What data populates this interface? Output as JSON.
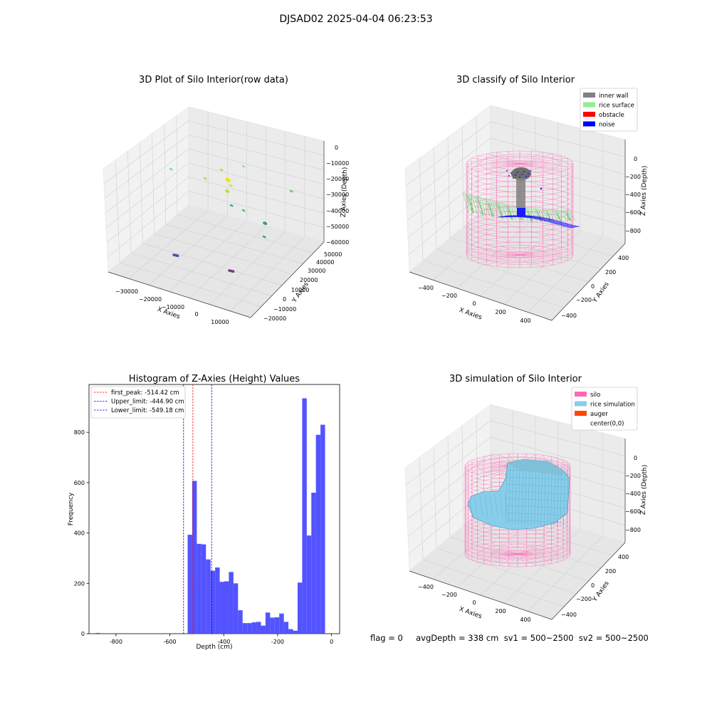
{
  "figure": {
    "suptitle": "DJSAD02 2025-04-04 06:23:53",
    "status": "flag = 0     avgDepth = 338 cm  sv1 = 500~2500  sv2 = 500~2500"
  },
  "panels": {
    "raw": {
      "title": "3D Plot of Silo Interior(row data)",
      "xlabel": "X Axies",
      "ylabel": "Y Axies",
      "zlabel": "Z Axies (Depth)",
      "xticks": [
        "−30000",
        "−20000",
        "−10000",
        "0",
        "10000"
      ],
      "yticks": [
        "−20000",
        "−10000",
        "0",
        "10000",
        "20000",
        "30000",
        "40000",
        "50000"
      ],
      "zticks": [
        "0",
        "−10000",
        "−20000",
        "−30000",
        "−40000",
        "−50000",
        "−60000"
      ]
    },
    "classify": {
      "title": "3D classify of Silo Interior",
      "xlabel": "X Axies",
      "ylabel": "Y Axies",
      "zlabel": "Z Axies (Depth)",
      "xticks": [
        "−400",
        "−200",
        "0",
        "200",
        "400"
      ],
      "yticks": [
        "−400",
        "−200",
        "0",
        "200",
        "400"
      ],
      "zticks": [
        "0",
        "−200",
        "−400",
        "−600",
        "−800"
      ],
      "legend": [
        {
          "label": "inner wall",
          "color": "#808080"
        },
        {
          "label": "rice surface",
          "color": "#90ee90"
        },
        {
          "label": "obstacle",
          "color": "#ff0000"
        },
        {
          "label": "noise",
          "color": "#0000ff"
        }
      ]
    },
    "simulation": {
      "title": "3D simulation of Silo Interior",
      "xlabel": "X Axies",
      "ylabel": "Y Axies",
      "zlabel": "Z Axies (Depth)",
      "xticks": [
        "−400",
        "−200",
        "0",
        "200",
        "400"
      ],
      "yticks": [
        "−400",
        "−200",
        "0",
        "200",
        "400"
      ],
      "zticks": [
        "0",
        "−200",
        "−400",
        "−600",
        "−800"
      ],
      "legend": [
        {
          "label": "silo",
          "color": "#ff69b4"
        },
        {
          "label": "rice simulation",
          "color": "#87ceeb"
        },
        {
          "label": "auger",
          "color": "#ff4500"
        },
        {
          "label": "center(0,0)",
          "color": "#ffffff"
        }
      ]
    }
  },
  "colors": {
    "hist_bar": "#4d4dff",
    "first_peak": "#ff0000",
    "limits": "#0000cc",
    "silo_mesh": "#ff69b4",
    "rice": "#87ceeb",
    "pane": "#f2f2f2",
    "grid": "#d0d0d0"
  },
  "chart_data": {
    "type": "bar",
    "title": "Histogram of Z-Axies (Height) Values",
    "xlabel": "Depth (cm)",
    "ylabel": "Frequency",
    "xlim": [
      -900,
      30
    ],
    "ylim": [
      0,
      990
    ],
    "xticks": [
      -800,
      -600,
      -400,
      -200,
      0
    ],
    "yticks": [
      0,
      200,
      400,
      600,
      800
    ],
    "bin_width": 17,
    "bins": [
      {
        "x0": -875,
        "value": 3
      },
      {
        "x0": -534,
        "value": 393
      },
      {
        "x0": -517,
        "value": 607
      },
      {
        "x0": -500,
        "value": 357
      },
      {
        "x0": -483,
        "value": 355
      },
      {
        "x0": -466,
        "value": 295
      },
      {
        "x0": -449,
        "value": 250
      },
      {
        "x0": -432,
        "value": 263
      },
      {
        "x0": -415,
        "value": 206
      },
      {
        "x0": -398,
        "value": 208
      },
      {
        "x0": -381,
        "value": 245
      },
      {
        "x0": -364,
        "value": 200
      },
      {
        "x0": -347,
        "value": 93
      },
      {
        "x0": -330,
        "value": 42
      },
      {
        "x0": -313,
        "value": 42
      },
      {
        "x0": -296,
        "value": 45
      },
      {
        "x0": -279,
        "value": 47
      },
      {
        "x0": -262,
        "value": 32
      },
      {
        "x0": -245,
        "value": 84
      },
      {
        "x0": -228,
        "value": 64
      },
      {
        "x0": -211,
        "value": 65
      },
      {
        "x0": -194,
        "value": 80
      },
      {
        "x0": -177,
        "value": 47
      },
      {
        "x0": -160,
        "value": 18
      },
      {
        "x0": -143,
        "value": 12
      },
      {
        "x0": -126,
        "value": 203
      },
      {
        "x0": -109,
        "value": 935
      },
      {
        "x0": -92,
        "value": 390
      },
      {
        "x0": -75,
        "value": 560
      },
      {
        "x0": -58,
        "value": 790
      },
      {
        "x0": -41,
        "value": 830
      },
      {
        "x0": -24,
        "value": 0
      }
    ],
    "reference_lines": [
      {
        "name": "first_peak: -514.42 cm",
        "x": -514.42,
        "color": "#ff0000"
      },
      {
        "name": "Upper_limit: -444.90 cm",
        "x": -444.9,
        "color": "#0000cc"
      },
      {
        "name": "Lower_limit: -549.18 cm",
        "x": -549.18,
        "color": "#0000cc"
      }
    ]
  }
}
